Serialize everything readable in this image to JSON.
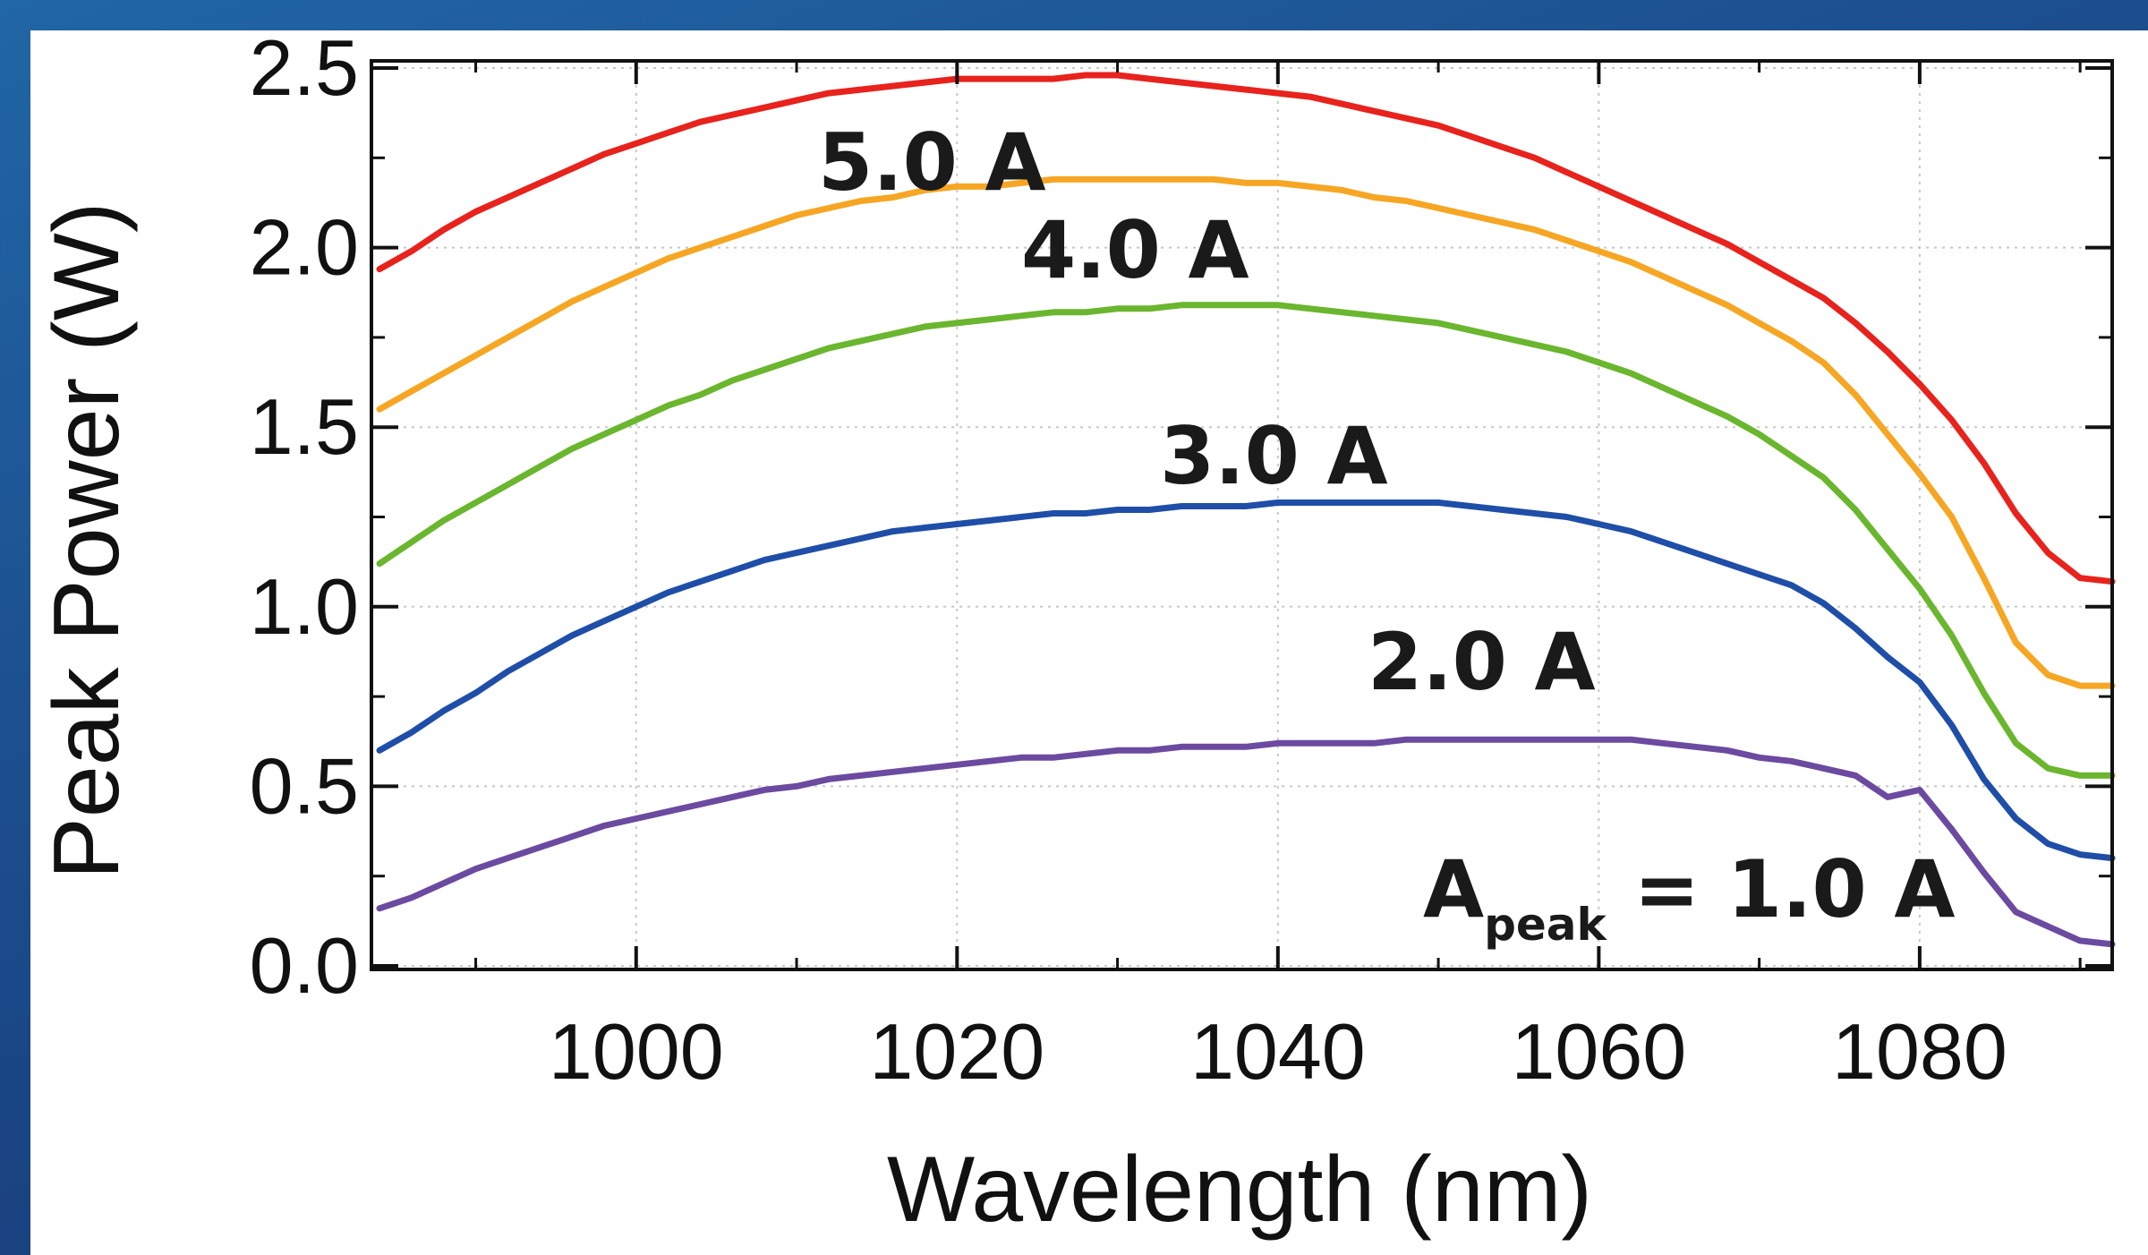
{
  "chart_data": {
    "type": "line",
    "title": "",
    "xlabel": "Wavelength (nm)",
    "ylabel": "Peak Power (W)",
    "xlim": [
      983.5,
      1092
    ],
    "ylim": [
      -0.01,
      2.52
    ],
    "xticks": [
      1000,
      1020,
      1040,
      1060,
      1080
    ],
    "xtick_labels": [
      "1000",
      "1020",
      "1040",
      "1060",
      "1080"
    ],
    "yticks": [
      0.0,
      0.5,
      1.0,
      1.5,
      2.0,
      2.5
    ],
    "ytick_labels": [
      "0.0",
      "0.5",
      "1.0",
      "1.5",
      "2.0",
      "2.5"
    ],
    "grid": true,
    "x": [
      984,
      986,
      988,
      990,
      992,
      994,
      996,
      998,
      1000,
      1002,
      1004,
      1006,
      1008,
      1010,
      1012,
      1014,
      1016,
      1018,
      1020,
      1022,
      1024,
      1026,
      1028,
      1030,
      1032,
      1034,
      1036,
      1038,
      1040,
      1042,
      1044,
      1046,
      1048,
      1050,
      1052,
      1054,
      1056,
      1058,
      1060,
      1062,
      1064,
      1066,
      1068,
      1070,
      1072,
      1074,
      1076,
      1078,
      1080,
      1082,
      1084,
      1086,
      1088,
      1090,
      1092
    ],
    "series": [
      {
        "name": "5.0 A",
        "label": "5.0 A",
        "color": "#e8221c",
        "values": [
          1.94,
          1.99,
          2.05,
          2.1,
          2.14,
          2.18,
          2.22,
          2.26,
          2.29,
          2.32,
          2.35,
          2.37,
          2.39,
          2.41,
          2.43,
          2.44,
          2.45,
          2.46,
          2.47,
          2.47,
          2.47,
          2.47,
          2.48,
          2.48,
          2.47,
          2.46,
          2.45,
          2.44,
          2.43,
          2.42,
          2.4,
          2.38,
          2.36,
          2.34,
          2.31,
          2.28,
          2.25,
          2.21,
          2.17,
          2.13,
          2.09,
          2.05,
          2.01,
          1.96,
          1.91,
          1.86,
          1.79,
          1.71,
          1.62,
          1.52,
          1.4,
          1.26,
          1.15,
          1.08,
          1.07
        ]
      },
      {
        "name": "4.0 A",
        "label": "4.0 A",
        "color": "#f6a623",
        "values": [
          1.55,
          1.6,
          1.65,
          1.7,
          1.75,
          1.8,
          1.85,
          1.89,
          1.93,
          1.97,
          2.0,
          2.03,
          2.06,
          2.09,
          2.11,
          2.13,
          2.14,
          2.16,
          2.17,
          2.17,
          2.18,
          2.19,
          2.19,
          2.19,
          2.19,
          2.19,
          2.19,
          2.18,
          2.18,
          2.17,
          2.16,
          2.14,
          2.13,
          2.11,
          2.09,
          2.07,
          2.05,
          2.02,
          1.99,
          1.96,
          1.92,
          1.88,
          1.84,
          1.79,
          1.74,
          1.68,
          1.59,
          1.48,
          1.37,
          1.25,
          1.08,
          0.9,
          0.81,
          0.78,
          0.78
        ]
      },
      {
        "name": "3.0 A",
        "label": "3.0 A",
        "color": "#6ab62e",
        "values": [
          1.12,
          1.18,
          1.24,
          1.29,
          1.34,
          1.39,
          1.44,
          1.48,
          1.52,
          1.56,
          1.59,
          1.63,
          1.66,
          1.69,
          1.72,
          1.74,
          1.76,
          1.78,
          1.79,
          1.8,
          1.81,
          1.82,
          1.82,
          1.83,
          1.83,
          1.84,
          1.84,
          1.84,
          1.84,
          1.83,
          1.82,
          1.81,
          1.8,
          1.79,
          1.77,
          1.75,
          1.73,
          1.71,
          1.68,
          1.65,
          1.61,
          1.57,
          1.53,
          1.48,
          1.42,
          1.36,
          1.27,
          1.16,
          1.05,
          0.92,
          0.76,
          0.62,
          0.55,
          0.53,
          0.53
        ]
      },
      {
        "name": "2.0 A",
        "label": "2.0 A",
        "color": "#1f4ea8",
        "values": [
          0.6,
          0.65,
          0.71,
          0.76,
          0.82,
          0.87,
          0.92,
          0.96,
          1.0,
          1.04,
          1.07,
          1.1,
          1.13,
          1.15,
          1.17,
          1.19,
          1.21,
          1.22,
          1.23,
          1.24,
          1.25,
          1.26,
          1.26,
          1.27,
          1.27,
          1.28,
          1.28,
          1.28,
          1.29,
          1.29,
          1.29,
          1.29,
          1.29,
          1.29,
          1.28,
          1.27,
          1.26,
          1.25,
          1.23,
          1.21,
          1.18,
          1.15,
          1.12,
          1.09,
          1.06,
          1.01,
          0.94,
          0.86,
          0.79,
          0.67,
          0.52,
          0.41,
          0.34,
          0.31,
          0.3
        ]
      },
      {
        "name": "1.0 A",
        "label": "A",
        "label_sub": "peak",
        "label_suffix": " = 1.0 A",
        "color": "#6b4aa0",
        "values": [
          0.16,
          0.19,
          0.23,
          0.27,
          0.3,
          0.33,
          0.36,
          0.39,
          0.41,
          0.43,
          0.45,
          0.47,
          0.49,
          0.5,
          0.52,
          0.53,
          0.54,
          0.55,
          0.56,
          0.57,
          0.58,
          0.58,
          0.59,
          0.6,
          0.6,
          0.61,
          0.61,
          0.61,
          0.62,
          0.62,
          0.62,
          0.62,
          0.63,
          0.63,
          0.63,
          0.63,
          0.63,
          0.63,
          0.63,
          0.63,
          0.62,
          0.61,
          0.6,
          0.58,
          0.57,
          0.55,
          0.53,
          0.47,
          0.49,
          0.38,
          0.26,
          0.15,
          0.11,
          0.07,
          0.06
        ]
      }
    ]
  }
}
